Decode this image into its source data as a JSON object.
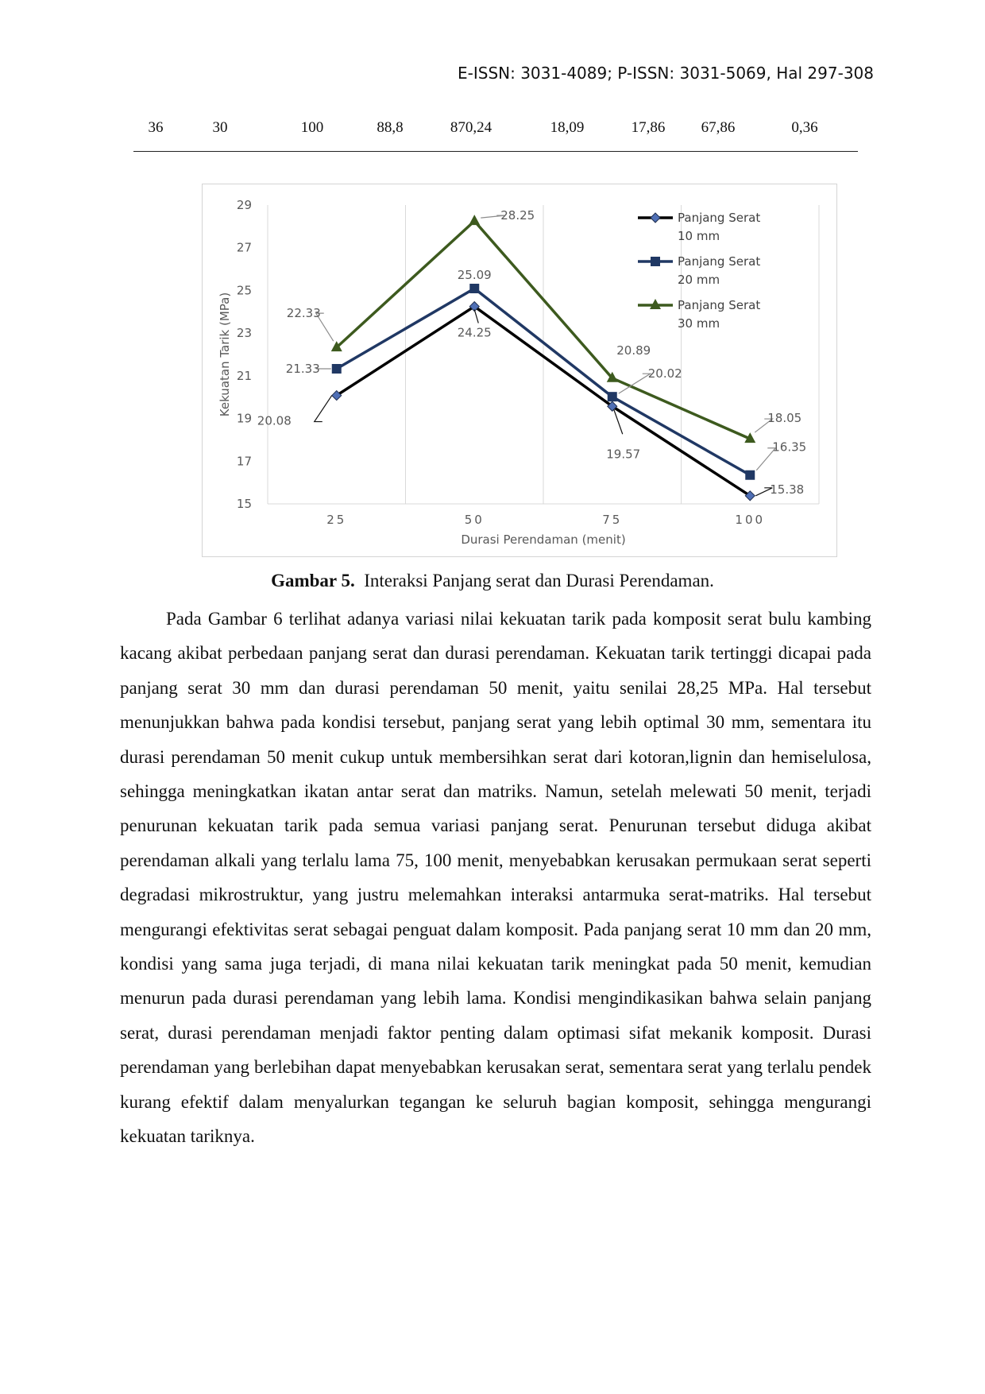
{
  "header": {
    "issn": "E-ISSN: 3031-4089; P-ISSN: 3031-5069, Hal 297-308"
  },
  "table_row": {
    "cells": [
      "36",
      "30",
      "100",
      "88,8",
      "870,24",
      "18,09",
      "17,86",
      "67,86",
      "0,36"
    ]
  },
  "chart_data": {
    "type": "line",
    "title": "",
    "xlabel": "Durasi Perendaman (menit)",
    "ylabel": "Kekuatan Tarik (MPa)",
    "categories": [
      "25",
      "50",
      "75",
      "100"
    ],
    "ylim": [
      15,
      29
    ],
    "yticks": [
      "15",
      "17",
      "19",
      "21",
      "23",
      "25",
      "27",
      "29"
    ],
    "grid": "vertical",
    "legend_position": "top-right",
    "series": [
      {
        "name": "Panjang Serat 10 mm",
        "legend_lines": [
          "Panjang Serat",
          "10 mm"
        ],
        "values": [
          20.08,
          24.25,
          19.57,
          15.38
        ],
        "labels": [
          "20.08",
          "24.25",
          "19.57",
          "15.38"
        ],
        "color": "#000000",
        "marker": "diamond"
      },
      {
        "name": "Panjang Serat 20 mm",
        "legend_lines": [
          "Panjang Serat",
          "20 mm"
        ],
        "values": [
          21.33,
          25.09,
          20.02,
          16.35
        ],
        "labels": [
          "21.33",
          "25.09",
          "20.02",
          "16.35"
        ],
        "color": "#203864",
        "marker": "square"
      },
      {
        "name": "Panjang Serat 30 mm",
        "legend_lines": [
          "Panjang Serat",
          "30 mm"
        ],
        "values": [
          22.33,
          28.25,
          20.89,
          18.05
        ],
        "labels": [
          "22.33",
          "28.25",
          "20.89",
          "18.05"
        ],
        "color": "#3d5a1e",
        "marker": "triangle"
      }
    ]
  },
  "caption": {
    "label": "Gambar 5.",
    "text": "Interaksi Panjang serat dan Durasi Perendaman."
  },
  "paragraph": "Pada Gambar 6 terlihat adanya variasi nilai kekuatan tarik pada komposit serat bulu kambing kacang akibat perbedaan panjang serat dan durasi perendaman. Kekuatan tarik tertinggi dicapai pada panjang serat 30 mm dan durasi perendaman 50 menit, yaitu senilai 28,25 MPa. Hal tersebut menunjukkan bahwa pada kondisi tersebut, panjang serat yang lebih optimal 30 mm, sementara itu durasi perendaman 50 menit cukup untuk membersihkan serat dari kotoran,lignin dan hemiselulosa, sehingga meningkatkan ikatan antar serat dan matriks. Namun, setelah melewati 50 menit, terjadi penurunan kekuatan tarik pada semua variasi panjang serat. Penurunan tersebut diduga akibat perendaman alkali yang terlalu lama 75, 100 menit, menyebabkan kerusakan permukaan serat seperti degradasi mikrostruktur, yang justru melemahkan interaksi antarmuka serat-matriks. Hal tersebut mengurangi efektivitas serat sebagai penguat dalam komposit. Pada panjang serat 10 mm dan 20 mm, kondisi yang sama juga terjadi, di mana nilai kekuatan tarik meningkat pada 50 menit, kemudian menurun pada durasi perendaman yang lebih lama. Kondisi mengindikasikan bahwa selain panjang serat, durasi perendaman menjadi faktor penting dalam optimasi sifat mekanik komposit. Durasi perendaman yang berlebihan dapat menyebabkan kerusakan serat, sementara serat yang terlalu pendek kurang efektif dalam menyalurkan tegangan ke seluruh bagian komposit, sehingga mengurangi kekuatan tariknya."
}
